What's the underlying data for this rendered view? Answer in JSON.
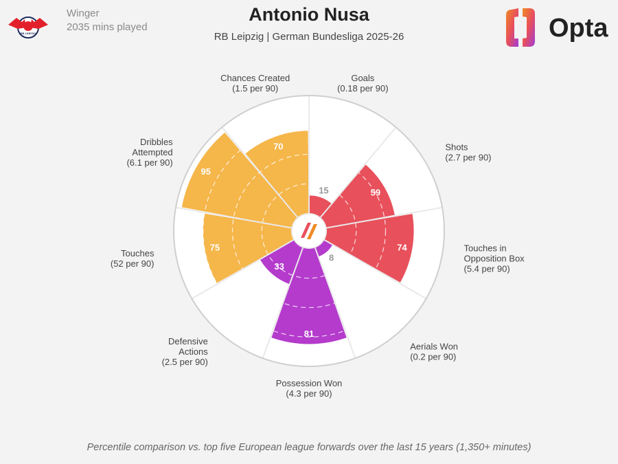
{
  "header": {
    "position": "Winger",
    "minutes": "2035 mins played",
    "title": "Antonio Nusa",
    "subtitle": "RB Leipzig | German Bundesliga 2025-26",
    "brand": "Opta",
    "club_logo_text": "RB LEIPZIG"
  },
  "footer": {
    "note": "Percentile comparison vs. top five European league forwards over the last 15 years (1,350+ minutes)"
  },
  "colors": {
    "attacking": "#e8505b",
    "possession": "#f5b64a",
    "defending": "#b43bcc",
    "outline": "#cfcfcf",
    "background": "#f3f3f3"
  },
  "chart_data": {
    "type": "polar_bar",
    "scale_max": 100,
    "categories": [
      {
        "name": "Goals",
        "stat": "(0.18 per 90)",
        "value": 15,
        "group": "attacking"
      },
      {
        "name": "Shots",
        "stat": "(2.7 per 90)",
        "value": 59,
        "group": "attacking"
      },
      {
        "name": "Touches in Opposition Box",
        "label_lines": [
          "Touches in",
          "Opposition Box"
        ],
        "stat": "(5.4 per 90)",
        "value": 74,
        "group": "attacking"
      },
      {
        "name": "Aerials Won",
        "stat": "(0.2 per 90)",
        "value": 8,
        "group": "defending"
      },
      {
        "name": "Possession Won",
        "stat": "(4.3 per 90)",
        "value": 81,
        "group": "defending"
      },
      {
        "name": "Defensive Actions",
        "label_lines": [
          "Defensive",
          "Actions"
        ],
        "stat": "(2.5 per 90)",
        "value": 33,
        "group": "defending"
      },
      {
        "name": "Touches",
        "stat": "(52 per 90)",
        "value": 75,
        "group": "possession"
      },
      {
        "name": "Dribbles Attempted",
        "label_lines": [
          "Dribbles",
          "Attempted"
        ],
        "stat": "(6.1 per 90)",
        "value": 95,
        "group": "possession"
      },
      {
        "name": "Chances Created",
        "stat": "(1.5 per 90)",
        "value": 70,
        "group": "possession"
      }
    ]
  }
}
